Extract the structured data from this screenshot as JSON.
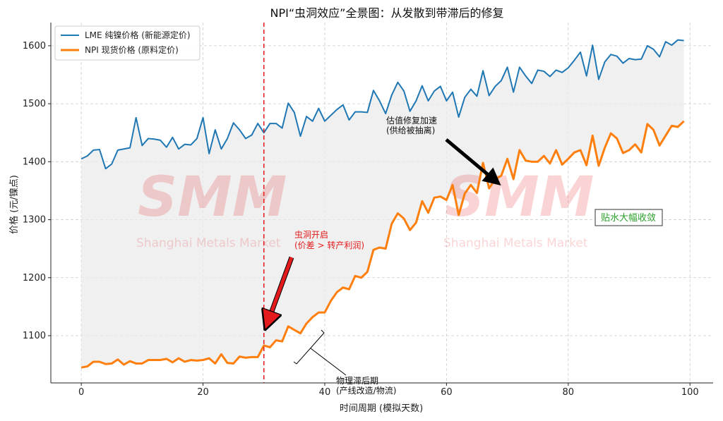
{
  "chart_data": {
    "type": "line",
    "title": "NPI“虫洞效应”全景图：从发散到带滞后的修复",
    "xlabel": "时间周期 (模拟天数)",
    "ylabel": "价格 (元/镍点)",
    "xlim": [
      -5,
      103.8
    ],
    "ylim": [
      1018.5,
      1640
    ],
    "xticks": [
      0,
      20,
      40,
      60,
      80,
      100
    ],
    "yticks": [
      1100,
      1200,
      1300,
      1400,
      1500,
      1600
    ],
    "grid": true,
    "legend_position": "top-left",
    "series": [
      {
        "name": "LME 纯镍价格 (新能源定价)",
        "color": "#1f77b4",
        "values": [
          1405,
          1410,
          1420,
          1421,
          1388,
          1396,
          1420,
          1422,
          1424,
          1476,
          1428,
          1440,
          1439,
          1437,
          1425,
          1442,
          1422,
          1430,
          1429,
          1440,
          1476,
          1414,
          1455,
          1422,
          1440,
          1467,
          1455,
          1440,
          1446,
          1466,
          1450,
          1466,
          1466,
          1458,
          1501,
          1485,
          1444,
          1478,
          1470,
          1492,
          1470,
          1480,
          1490,
          1498,
          1472,
          1486,
          1486,
          1485,
          1523,
          1505,
          1483,
          1515,
          1537,
          1522,
          1487,
          1505,
          1531,
          1505,
          1522,
          1530,
          1505,
          1520,
          1477,
          1511,
          1525,
          1513,
          1557,
          1514,
          1530,
          1540,
          1563,
          1520,
          1563,
          1548,
          1535,
          1558,
          1556,
          1547,
          1558,
          1554,
          1562,
          1575,
          1589,
          1548,
          1601,
          1542,
          1572,
          1585,
          1582,
          1570,
          1578,
          1576,
          1577,
          1600,
          1594,
          1581,
          1607,
          1601,
          1610,
          1609
        ]
      },
      {
        "name": "NPI 现货价格 (原料定价)",
        "color": "#ff7f0e",
        "values": [
          1045,
          1047,
          1055,
          1055,
          1051,
          1052,
          1059,
          1050,
          1056,
          1052,
          1052,
          1058,
          1058,
          1058,
          1060,
          1054,
          1061,
          1055,
          1058,
          1057,
          1058,
          1061,
          1052,
          1068,
          1053,
          1052,
          1064,
          1062,
          1063,
          1063,
          1083,
          1080,
          1092,
          1090,
          1116,
          1110,
          1104,
          1121,
          1132,
          1140,
          1140,
          1160,
          1175,
          1183,
          1180,
          1203,
          1200,
          1210,
          1248,
          1252,
          1250,
          1293,
          1311,
          1302,
          1282,
          1295,
          1332,
          1312,
          1338,
          1340,
          1334,
          1360,
          1308,
          1345,
          1360,
          1346,
          1398,
          1354,
          1370,
          1376,
          1405,
          1370,
          1420,
          1402,
          1400,
          1400,
          1410,
          1397,
          1420,
          1395,
          1405,
          1416,
          1420,
          1394,
          1445,
          1393,
          1424,
          1449,
          1440,
          1415,
          1420,
          1430,
          1416,
          1465,
          1455,
          1428,
          1445,
          1462,
          1460,
          1470
        ]
      }
    ],
    "vline": {
      "x": 30,
      "color": "#e41a1c"
    },
    "annotations": {
      "wormhole": {
        "line1": "虫洞开启",
        "line2": "(价差 > 转产利润)"
      },
      "repair": {
        "line1": "估值修复加速",
        "line2": "(供给被抽离)"
      },
      "lag": {
        "line1": "物理滞后期",
        "line2": "(产线改造/物流)"
      },
      "converge": "贴水大幅收敛"
    },
    "watermark": {
      "logo": "SMM",
      "text": "Shanghai Metals Market"
    }
  }
}
